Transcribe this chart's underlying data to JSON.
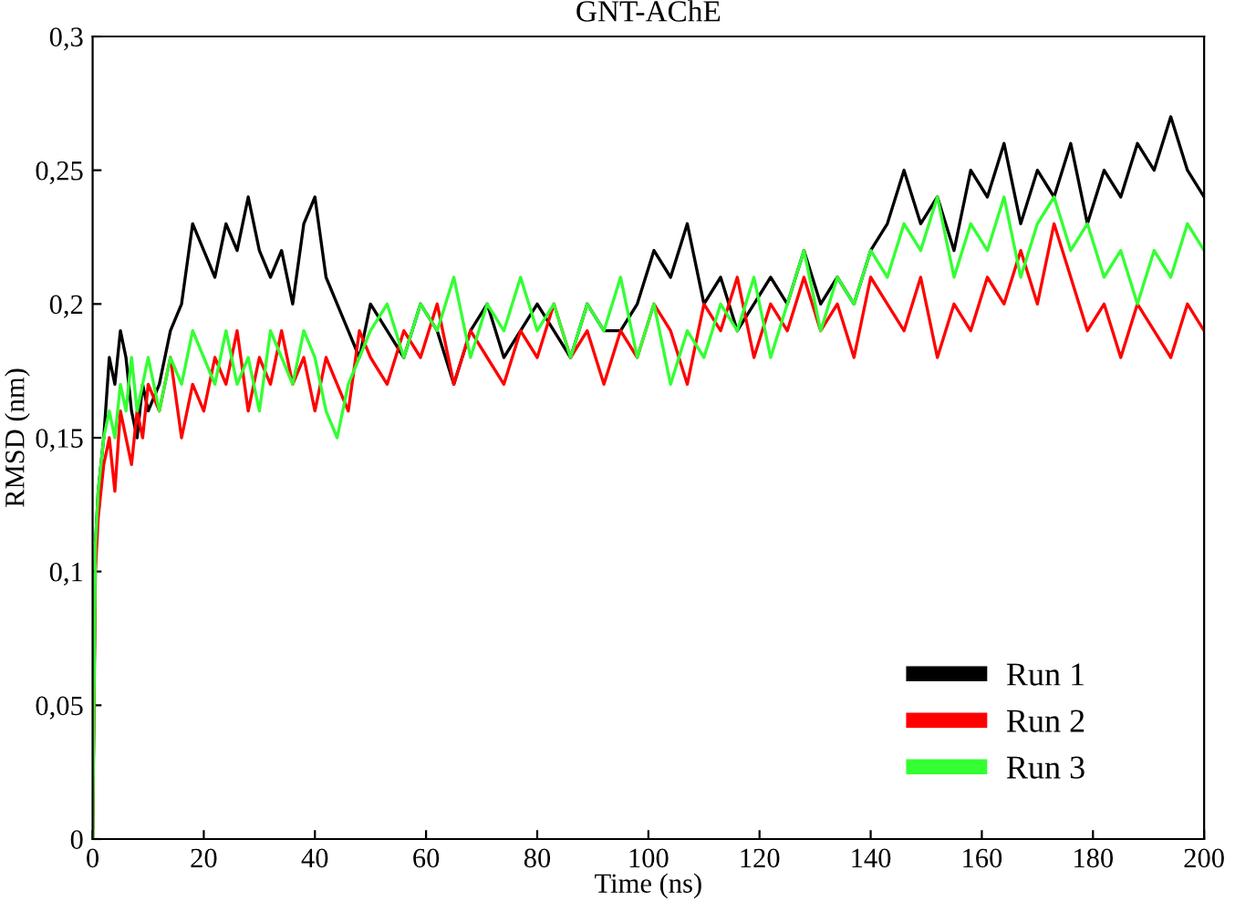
{
  "chart_data": {
    "type": "line",
    "title": "GNT-AChE",
    "xlabel": "Time (ns)",
    "ylabel": "RMSD (nm)",
    "x": [
      0,
      0.5,
      1,
      2,
      3,
      4,
      5,
      6,
      7,
      8,
      9,
      10,
      12,
      14,
      16,
      18,
      20,
      22,
      24,
      26,
      28,
      30,
      32,
      34,
      36,
      38,
      40,
      42,
      44,
      46,
      48,
      50,
      53,
      56,
      59,
      62,
      65,
      68,
      71,
      74,
      77,
      80,
      83,
      86,
      89,
      92,
      95,
      98,
      101,
      104,
      107,
      110,
      113,
      116,
      119,
      122,
      125,
      128,
      131,
      134,
      137,
      140,
      143,
      146,
      149,
      152,
      155,
      158,
      161,
      164,
      167,
      170,
      173,
      176,
      179,
      182,
      185,
      188,
      191,
      194,
      197,
      200
    ],
    "series": [
      {
        "name": "Run 1",
        "color": "#000000",
        "values": [
          0,
          0.11,
          0.13,
          0.15,
          0.18,
          0.17,
          0.19,
          0.18,
          0.16,
          0.15,
          0.17,
          0.16,
          0.17,
          0.19,
          0.2,
          0.23,
          0.22,
          0.21,
          0.23,
          0.22,
          0.24,
          0.22,
          0.21,
          0.22,
          0.2,
          0.23,
          0.24,
          0.21,
          0.2,
          0.19,
          0.18,
          0.2,
          0.19,
          0.18,
          0.2,
          0.19,
          0.17,
          0.19,
          0.2,
          0.18,
          0.19,
          0.2,
          0.19,
          0.18,
          0.2,
          0.19,
          0.19,
          0.2,
          0.22,
          0.21,
          0.23,
          0.2,
          0.21,
          0.19,
          0.2,
          0.21,
          0.2,
          0.22,
          0.2,
          0.21,
          0.2,
          0.22,
          0.23,
          0.25,
          0.23,
          0.24,
          0.22,
          0.25,
          0.24,
          0.26,
          0.23,
          0.25,
          0.24,
          0.26,
          0.23,
          0.25,
          0.24,
          0.26,
          0.25,
          0.27,
          0.25,
          0.24
        ]
      },
      {
        "name": "Run 2",
        "color": "#ff0000",
        "values": [
          0,
          0.1,
          0.12,
          0.14,
          0.15,
          0.13,
          0.16,
          0.15,
          0.14,
          0.16,
          0.15,
          0.17,
          0.16,
          0.18,
          0.15,
          0.17,
          0.16,
          0.18,
          0.17,
          0.19,
          0.16,
          0.18,
          0.17,
          0.19,
          0.17,
          0.18,
          0.16,
          0.18,
          0.17,
          0.16,
          0.19,
          0.18,
          0.17,
          0.19,
          0.18,
          0.2,
          0.17,
          0.19,
          0.18,
          0.17,
          0.19,
          0.18,
          0.2,
          0.18,
          0.19,
          0.17,
          0.19,
          0.18,
          0.2,
          0.19,
          0.17,
          0.2,
          0.19,
          0.21,
          0.18,
          0.2,
          0.19,
          0.21,
          0.19,
          0.2,
          0.18,
          0.21,
          0.2,
          0.19,
          0.21,
          0.18,
          0.2,
          0.19,
          0.21,
          0.2,
          0.22,
          0.2,
          0.23,
          0.21,
          0.19,
          0.2,
          0.18,
          0.2,
          0.19,
          0.18,
          0.2,
          0.19
        ]
      },
      {
        "name": "Run 3",
        "color": "#33ff33",
        "values": [
          0,
          0.11,
          0.13,
          0.15,
          0.16,
          0.15,
          0.17,
          0.16,
          0.18,
          0.16,
          0.17,
          0.18,
          0.16,
          0.18,
          0.17,
          0.19,
          0.18,
          0.17,
          0.19,
          0.17,
          0.18,
          0.16,
          0.19,
          0.18,
          0.17,
          0.19,
          0.18,
          0.16,
          0.15,
          0.17,
          0.18,
          0.19,
          0.2,
          0.18,
          0.2,
          0.19,
          0.21,
          0.18,
          0.2,
          0.19,
          0.21,
          0.19,
          0.2,
          0.18,
          0.2,
          0.19,
          0.21,
          0.18,
          0.2,
          0.17,
          0.19,
          0.18,
          0.2,
          0.19,
          0.21,
          0.18,
          0.2,
          0.22,
          0.19,
          0.21,
          0.2,
          0.22,
          0.21,
          0.23,
          0.22,
          0.24,
          0.21,
          0.23,
          0.22,
          0.24,
          0.21,
          0.23,
          0.24,
          0.22,
          0.23,
          0.21,
          0.22,
          0.2,
          0.22,
          0.21,
          0.23,
          0.22
        ]
      }
    ],
    "xlim": [
      0,
      200
    ],
    "xticks": [
      0,
      20,
      40,
      60,
      80,
      100,
      120,
      140,
      160,
      180,
      200
    ],
    "ylim": [
      0,
      0.3
    ],
    "yticks": [
      {
        "value": 0,
        "label": "0"
      },
      {
        "value": 0.05,
        "label": "0,05"
      },
      {
        "value": 0.1,
        "label": "0,1"
      },
      {
        "value": 0.15,
        "label": "0,15"
      },
      {
        "value": 0.2,
        "label": "0,2"
      },
      {
        "value": 0.25,
        "label": "0,25"
      },
      {
        "value": 0.3,
        "label": "0,3"
      }
    ],
    "legend": "bottom right",
    "grid": false,
    "marker": "none",
    "line_style": "solid"
  }
}
